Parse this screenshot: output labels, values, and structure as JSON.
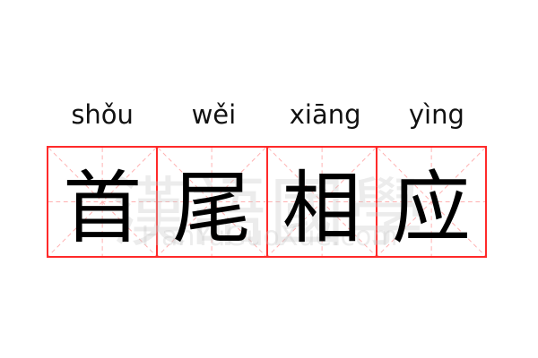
{
  "idiom": {
    "pinyin": [
      "shǒu",
      "wěi",
      "xiāng",
      "yìng"
    ],
    "characters": [
      "首",
      "尾",
      "相",
      "应"
    ]
  },
  "watermark": {
    "chinese": "漢語國學",
    "latin": "HanYuGuoXue.com"
  },
  "colors": {
    "grid_border": "#ff2a2a",
    "grid_guides": "#ffb0b0",
    "text": "#000000"
  }
}
